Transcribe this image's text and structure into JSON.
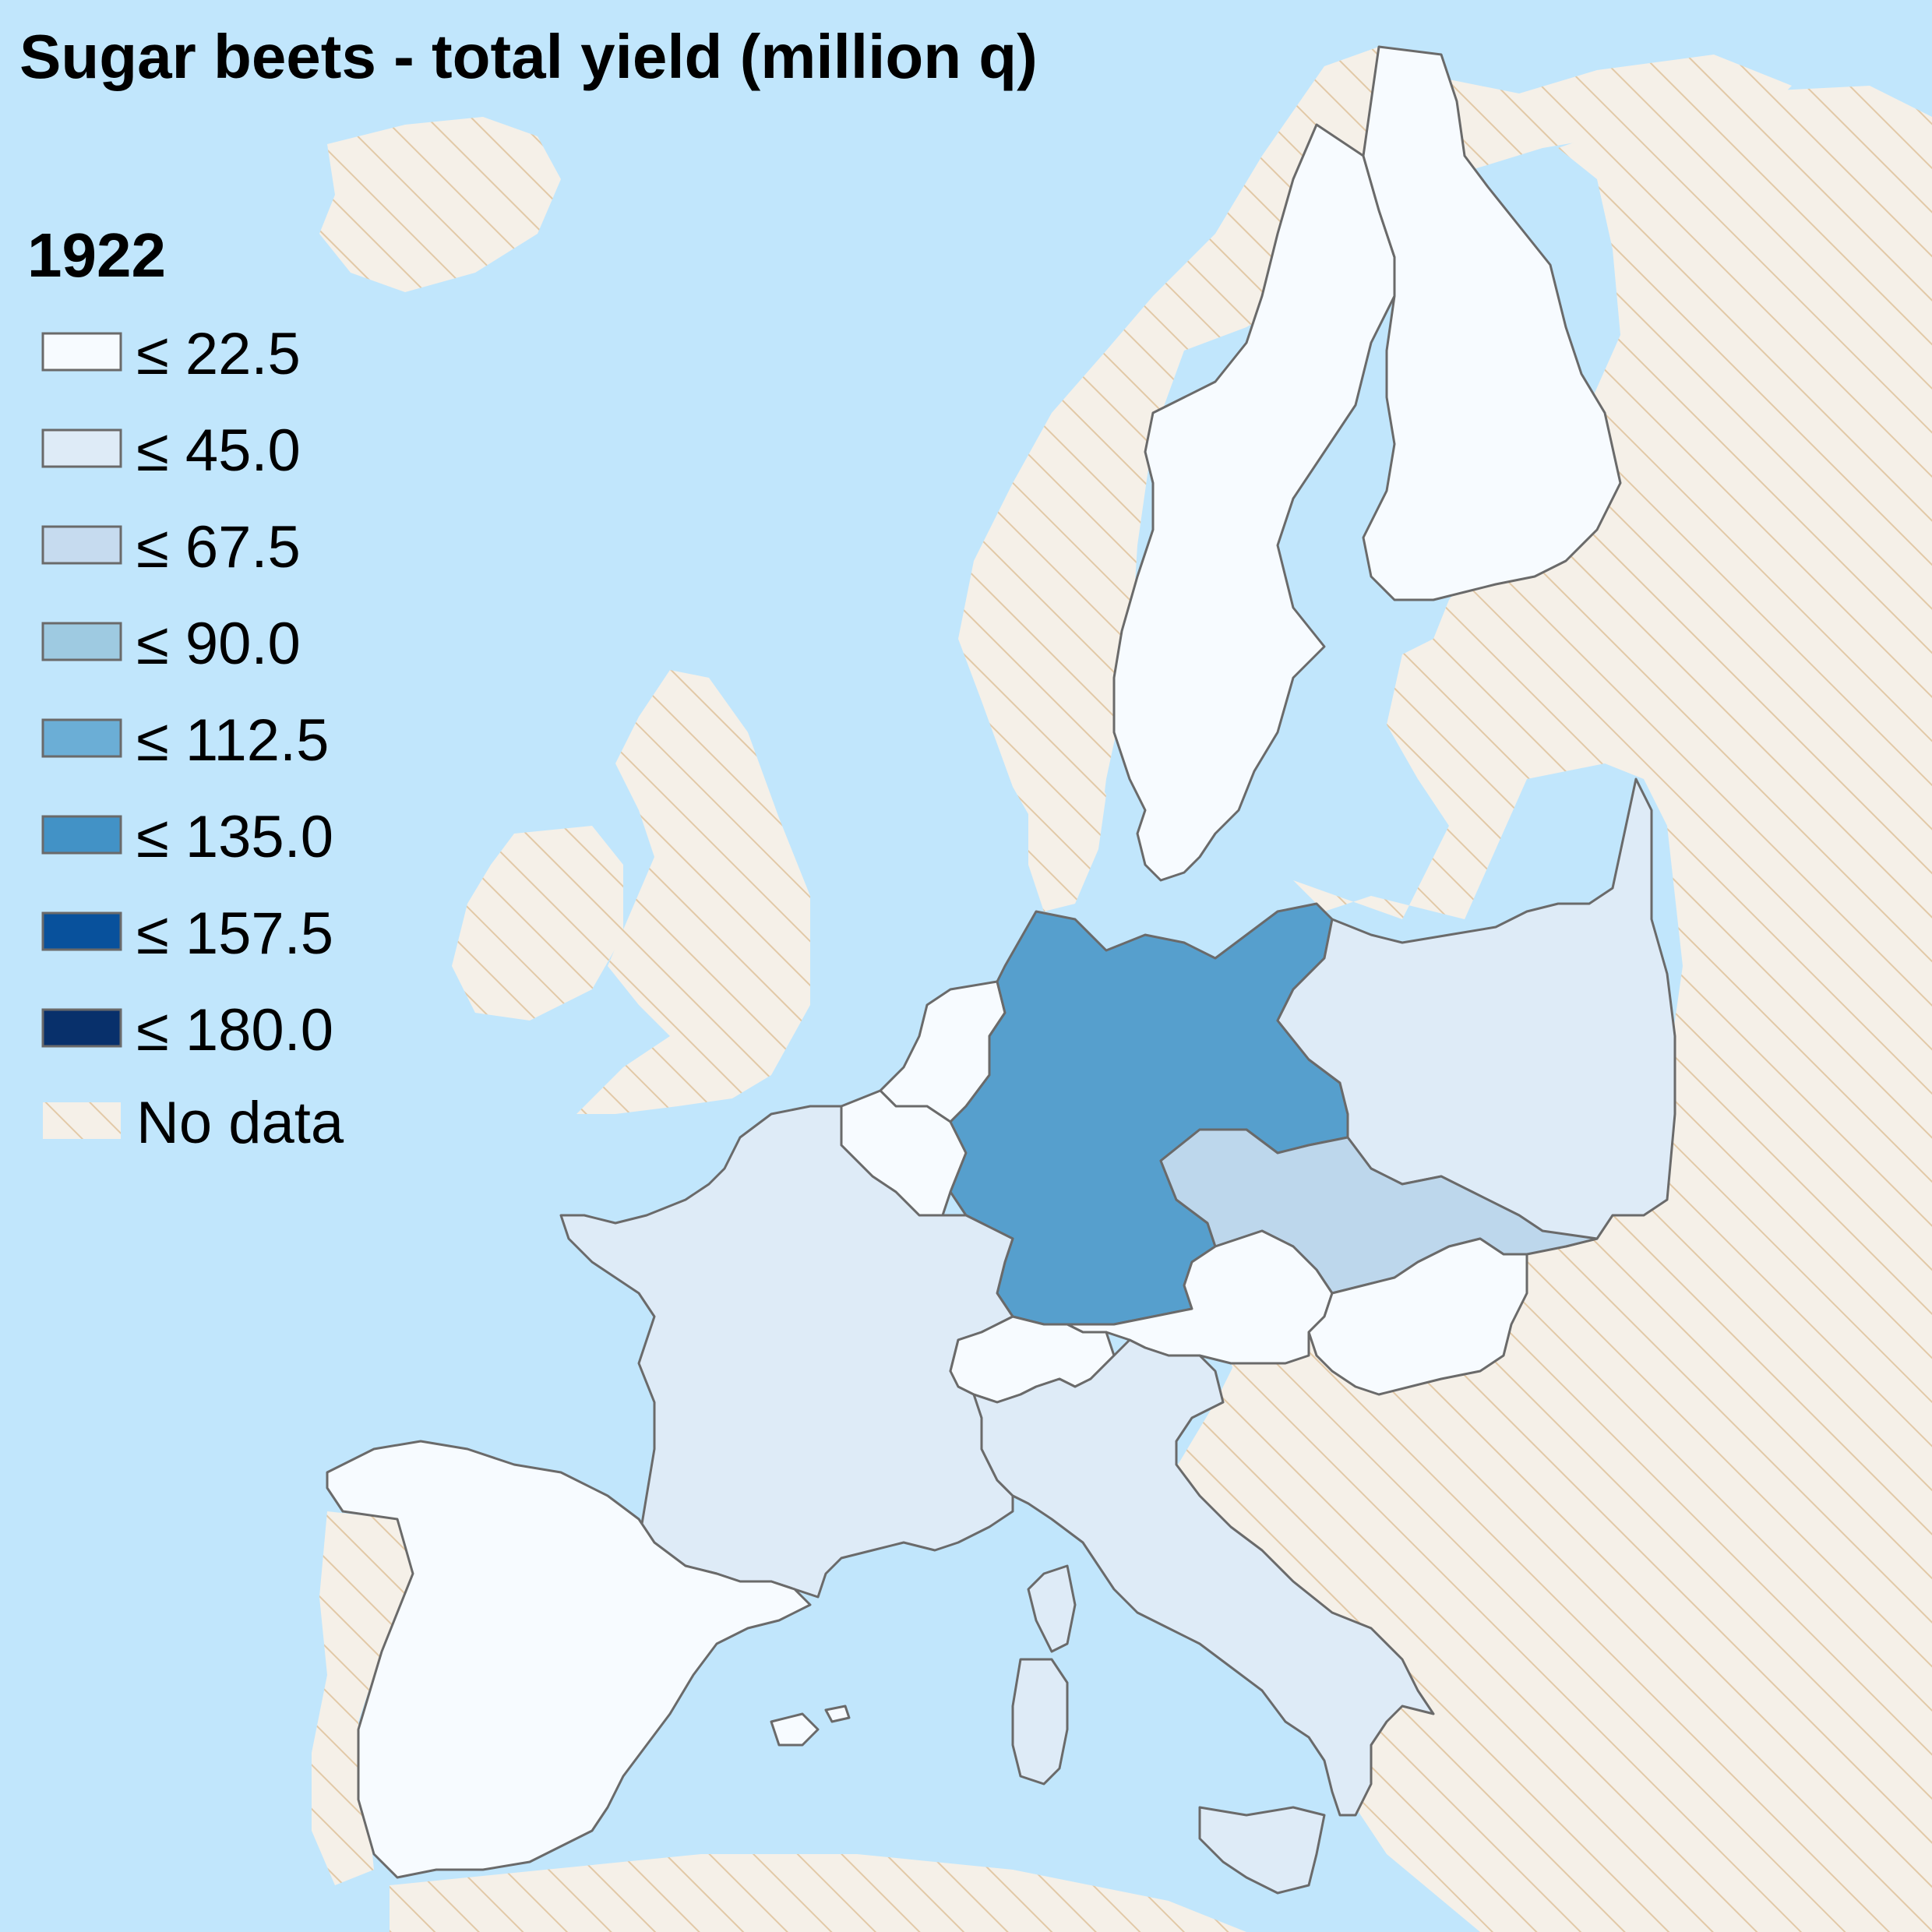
{
  "title": "Sugar beets - total yield (million q)",
  "year": "1922",
  "legend": {
    "items": [
      {
        "label": "≤ 22.5",
        "color": "#f7fbff"
      },
      {
        "label": "≤ 45.0",
        "color": "#deebf7"
      },
      {
        "label": "≤ 67.5",
        "color": "#c6dbef"
      },
      {
        "label": "≤ 90.0",
        "color": "#9ecae1"
      },
      {
        "label": "≤ 112.5",
        "color": "#6baed6"
      },
      {
        "label": "≤ 135.0",
        "color": "#4292c6"
      },
      {
        "label": "≤ 157.5",
        "color": "#08519c"
      },
      {
        "label": "≤ 180.0",
        "color": "#08306b"
      },
      {
        "label": "No data",
        "color": "hatch"
      }
    ]
  },
  "colors": {
    "sea": "#c1e6fc",
    "nodata_fill": "#f5f0e8",
    "nodata_hatch": "#e2c9a7",
    "border": "#6a6a6a"
  },
  "countries": [
    {
      "name": "Sweden",
      "class": "≤ 22.5",
      "color": "#f7fbff"
    },
    {
      "name": "Finland",
      "class": "≤ 22.5",
      "color": "#f7fbff"
    },
    {
      "name": "Germany",
      "class": "≤ 112.5",
      "color": "#569fcd"
    },
    {
      "name": "Poland",
      "class": "≤ 45.0",
      "color": "#deebf7"
    },
    {
      "name": "Czechoslovakia",
      "class": "≤ 67.5",
      "color": "#bdd7ec"
    },
    {
      "name": "Austria",
      "class": "≤ 22.5",
      "color": "#f7fbff"
    },
    {
      "name": "Hungary",
      "class": "≤ 22.5",
      "color": "#f7fbff"
    },
    {
      "name": "Netherlands",
      "class": "≤ 22.5",
      "color": "#f7fbff"
    },
    {
      "name": "Belgium",
      "class": "≤ 22.5",
      "color": "#f7fbff"
    },
    {
      "name": "France",
      "class": "≤ 45.0",
      "color": "#deebf7"
    },
    {
      "name": "Switzerland",
      "class": "≤ 22.5",
      "color": "#f7fbff"
    },
    {
      "name": "Italy",
      "class": "≤ 45.0",
      "color": "#deebf7"
    },
    {
      "name": "Spain",
      "class": "≤ 22.5",
      "color": "#f7fbff"
    }
  ]
}
